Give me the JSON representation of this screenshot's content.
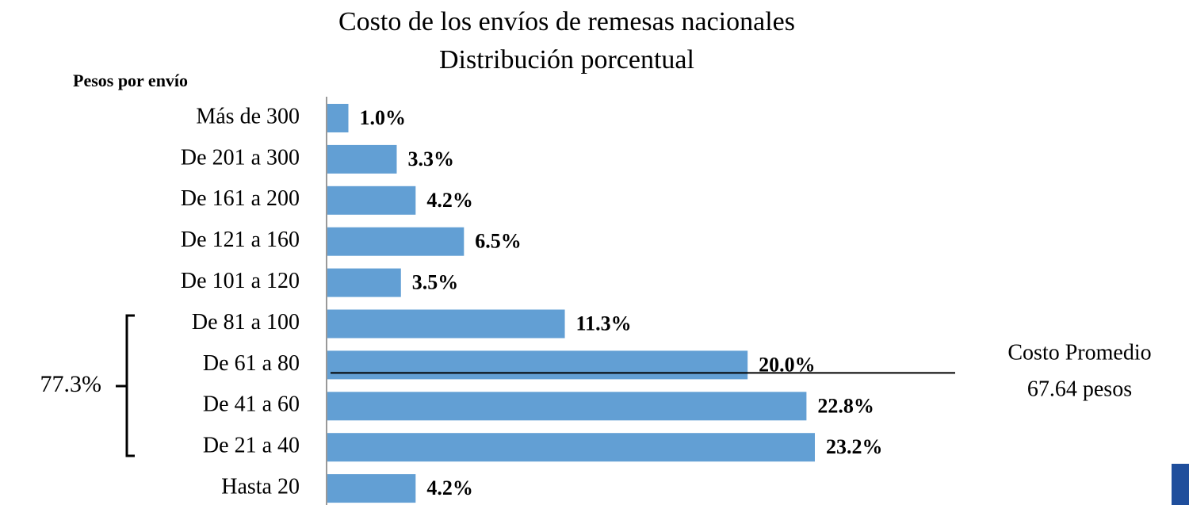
{
  "chart_data": {
    "type": "bar",
    "orientation": "horizontal",
    "title": "Costo de los envíos de remesas nacionales",
    "subtitle": "Distribución porcentual",
    "y_label": "Pesos por envío",
    "categories": [
      "Más de 300",
      "De 201 a 300",
      "De 161 a 200",
      "De 121 a 160",
      "De 101 a 120",
      "De 81 a 100",
      "De 61 a 80",
      "De 41 a 60",
      "De 21 a 40",
      "Hasta 20"
    ],
    "values": [
      1.0,
      3.3,
      4.2,
      6.5,
      3.5,
      11.3,
      20.0,
      22.8,
      23.2,
      4.2
    ],
    "value_labels": [
      "1.0%",
      "3.3%",
      "4.2%",
      "6.5%",
      "3.5%",
      "11.3%",
      "20.0%",
      "22.8%",
      "23.2%",
      "4.2%"
    ],
    "color": "#629fd4",
    "annotations": {
      "average": [
        "Costo Promedio",
        "67.64 pesos"
      ],
      "bracket": "77.3%"
    }
  }
}
